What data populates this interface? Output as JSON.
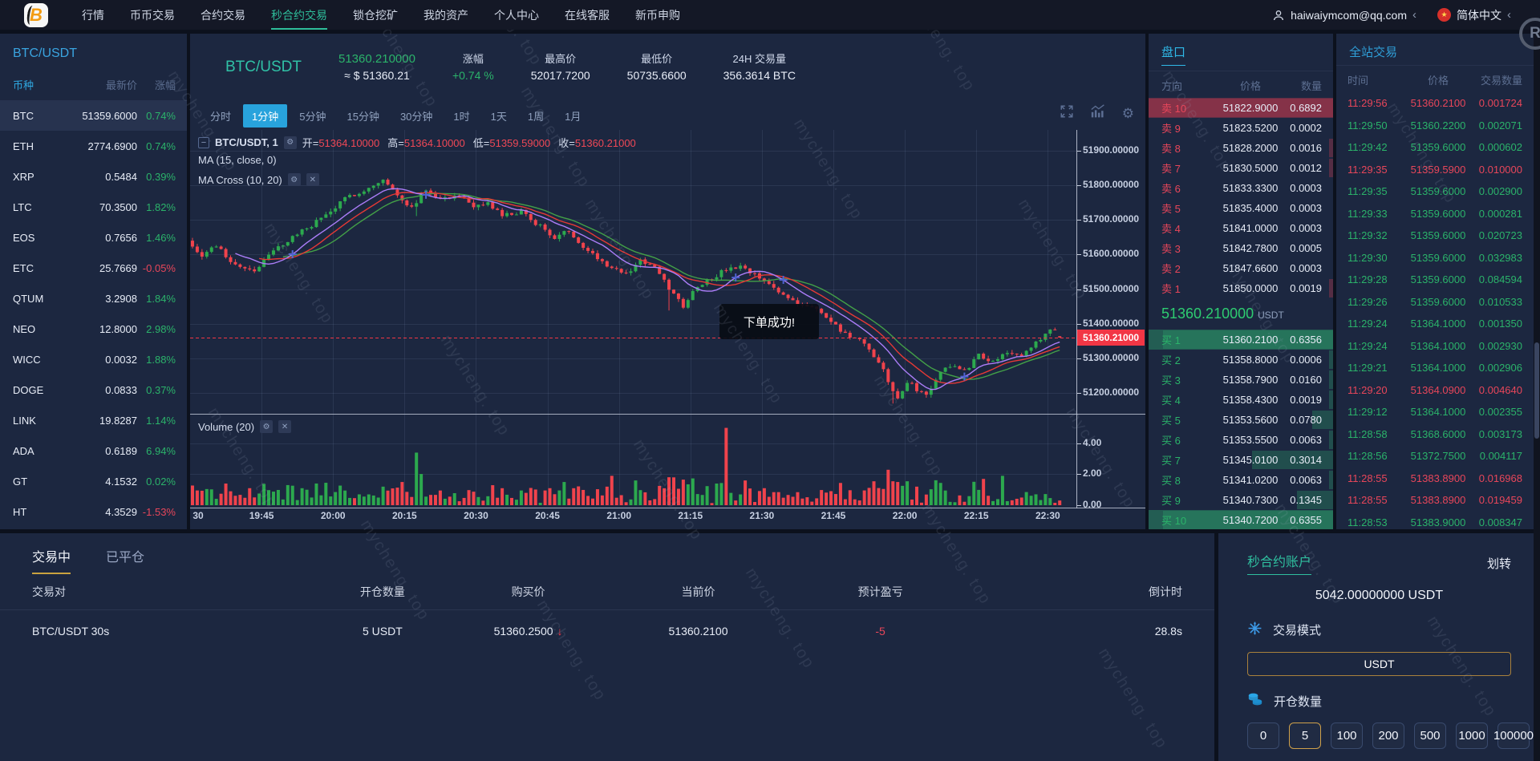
{
  "topbar": {
    "brand_letter": "B",
    "nav": [
      "行情",
      "币币交易",
      "合约交易",
      "秒合约交易",
      "锁仓挖矿",
      "我的资产",
      "个人中心",
      "在线客服",
      "新币申购"
    ],
    "active_nav_index": 3,
    "account_email": "haiwaiymcom@qq.com",
    "language": "简体中文"
  },
  "watermark_text": "mycheng. top",
  "sidebar": {
    "title": "BTC/USDT",
    "columns": [
      "币种",
      "最新价",
      "涨幅"
    ],
    "rows": [
      {
        "symbol": "BTC",
        "price": "51359.6000",
        "change": "0.74%",
        "dir": "up",
        "active": true
      },
      {
        "symbol": "ETH",
        "price": "2774.6900",
        "change": "0.74%",
        "dir": "up",
        "active": false
      },
      {
        "symbol": "XRP",
        "price": "0.5484",
        "change": "0.39%",
        "dir": "up",
        "active": false
      },
      {
        "symbol": "LTC",
        "price": "70.3500",
        "change": "1.82%",
        "dir": "up",
        "active": false
      },
      {
        "symbol": "EOS",
        "price": "0.7656",
        "change": "1.46%",
        "dir": "up",
        "active": false
      },
      {
        "symbol": "ETC",
        "price": "25.7669",
        "change": "-0.05%",
        "dir": "down",
        "active": false
      },
      {
        "symbol": "QTUM",
        "price": "3.2908",
        "change": "1.84%",
        "dir": "up",
        "active": false
      },
      {
        "symbol": "NEO",
        "price": "12.8000",
        "change": "2.98%",
        "dir": "up",
        "active": false
      },
      {
        "symbol": "WICC",
        "price": "0.0032",
        "change": "1.88%",
        "dir": "up",
        "active": false
      },
      {
        "symbol": "DOGE",
        "price": "0.0833",
        "change": "0.37%",
        "dir": "up",
        "active": false
      },
      {
        "symbol": "LINK",
        "price": "19.8287",
        "change": "1.14%",
        "dir": "up",
        "active": false
      },
      {
        "symbol": "ADA",
        "price": "0.6189",
        "change": "6.94%",
        "dir": "up",
        "active": false
      },
      {
        "symbol": "GT",
        "price": "4.1532",
        "change": "0.02%",
        "dir": "up",
        "active": false
      },
      {
        "symbol": "HT",
        "price": "4.3529",
        "change": "-1.53%",
        "dir": "down",
        "active": false
      }
    ]
  },
  "ticker": {
    "pair": "BTC/USDT",
    "last_price": "51360.210000",
    "usd_price": "≈ $ 51360.21",
    "change_label": "涨幅",
    "change_value": "+0.74 %",
    "high_label": "最高价",
    "high_value": "52017.7200",
    "low_label": "最低价",
    "low_value": "50735.6600",
    "volume_label": "24H 交易量",
    "volume_value": "356.3614 BTC"
  },
  "timeframes": {
    "items": [
      "分时",
      "1分钟",
      "5分钟",
      "15分钟",
      "30分钟",
      "1时",
      "1天",
      "1周",
      "1月"
    ],
    "active_index": 1
  },
  "chart_ui": {
    "series_label": "BTC/USDT, 1",
    "ohlc_items": [
      {
        "k": "开=",
        "v": "51364.10000"
      },
      {
        "k": "高=",
        "v": "51364.10000"
      },
      {
        "k": "低=",
        "v": "51359.59000"
      },
      {
        "k": "收=",
        "v": "51360.21000"
      }
    ],
    "ma_label": "MA (15, close, 0)",
    "ma_cross_label": "MA Cross (10, 20)",
    "volume_label": "Volume (20)",
    "toast": "下单成功!",
    "price_tag": "51360.21000"
  },
  "chart_data": {
    "type": "candlestick",
    "pair": "BTC/USDT",
    "interval": "1m",
    "slots": 186,
    "candles_shown": 183,
    "price_range": [
      51140,
      51960
    ],
    "y_ticks": [
      "51900.00000",
      "51800.00000",
      "51700.00000",
      "51600.00000",
      "51500.00000",
      "51400.00000",
      "51300.00000",
      "51200.00000"
    ],
    "y_tick_values": [
      51900,
      51800,
      51700,
      51600,
      51500,
      51400,
      51300,
      51200
    ],
    "x_ticks": [
      "30",
      "19:45",
      "20:00",
      "20:15",
      "20:30",
      "20:45",
      "21:00",
      "21:15",
      "21:30",
      "21:45",
      "22:00",
      "22:15",
      "22:30"
    ],
    "x_tick_minutes": [
      0,
      15,
      30,
      45,
      60,
      75,
      90,
      105,
      120,
      135,
      150,
      165,
      180
    ],
    "volume_ticks": [
      "4.00",
      "2.00",
      "0.00"
    ],
    "volume_tick_values": [
      4,
      2,
      0
    ],
    "volume_max": 5.6,
    "current_price": 51360.21,
    "last_candle": {
      "o": 51364.1,
      "h": 51364.1,
      "l": 51359.59,
      "c": 51360.21
    },
    "price_anchors": [
      [
        0,
        51640
      ],
      [
        3,
        51600
      ],
      [
        6,
        51625
      ],
      [
        10,
        51570
      ],
      [
        14,
        51555
      ],
      [
        18,
        51610
      ],
      [
        22,
        51650
      ],
      [
        26,
        51685
      ],
      [
        30,
        51725
      ],
      [
        34,
        51770
      ],
      [
        38,
        51792
      ],
      [
        41,
        51815
      ],
      [
        44,
        51770
      ],
      [
        47,
        51738
      ],
      [
        50,
        51790
      ],
      [
        53,
        51762
      ],
      [
        57,
        51772
      ],
      [
        60,
        51732
      ],
      [
        63,
        51748
      ],
      [
        66,
        51712
      ],
      [
        70,
        51722
      ],
      [
        74,
        51682
      ],
      [
        77,
        51648
      ],
      [
        80,
        51668
      ],
      [
        84,
        51612
      ],
      [
        88,
        51572
      ],
      [
        92,
        51542
      ],
      [
        95,
        51585
      ],
      [
        98,
        51560
      ],
      [
        101,
        51502
      ],
      [
        104,
        51452
      ],
      [
        107,
        51512
      ],
      [
        110,
        51532
      ],
      [
        113,
        51556
      ],
      [
        116,
        51562
      ],
      [
        120,
        51532
      ],
      [
        124,
        51492
      ],
      [
        128,
        51462
      ],
      [
        132,
        51442
      ],
      [
        136,
        51392
      ],
      [
        139,
        51362
      ],
      [
        142,
        51342
      ],
      [
        145,
        51292
      ],
      [
        147,
        51232
      ],
      [
        149,
        51182
      ],
      [
        151,
        51232
      ],
      [
        153,
        51212
      ],
      [
        155,
        51192
      ],
      [
        157,
        51242
      ],
      [
        160,
        51282
      ],
      [
        163,
        51262
      ],
      [
        166,
        51312
      ],
      [
        169,
        51292
      ],
      [
        172,
        51322
      ],
      [
        175,
        51302
      ],
      [
        178,
        51342
      ],
      [
        181,
        51386
      ],
      [
        183,
        51392
      ],
      [
        186,
        51362
      ]
    ],
    "wick_extends": [
      [
        47,
        25
      ],
      [
        100,
        55
      ],
      [
        147,
        35
      ]
    ],
    "volume_spikes": [
      [
        8,
        0.9
      ],
      [
        12,
        1.1
      ],
      [
        20,
        1.3
      ],
      [
        24,
        1.0
      ],
      [
        28,
        1.45
      ],
      [
        40,
        1.2
      ],
      [
        44,
        1.5
      ],
      [
        47,
        3.4
      ],
      [
        52,
        0.95
      ],
      [
        75,
        1.1
      ],
      [
        78,
        1.5
      ],
      [
        88,
        1.9
      ],
      [
        93,
        1.6
      ],
      [
        98,
        1.25
      ],
      [
        101,
        1.8
      ],
      [
        104,
        1.35
      ],
      [
        110,
        1.4
      ],
      [
        112,
        5.0
      ],
      [
        116,
        1.6
      ],
      [
        120,
        1.1
      ],
      [
        145,
        1.05
      ],
      [
        148,
        1.5
      ],
      [
        152,
        1.2
      ],
      [
        158,
        0.95
      ],
      [
        166,
        1.7
      ],
      [
        170,
        1.9
      ],
      [
        175,
        0.85
      ]
    ],
    "ma_periods": {
      "ma": 15,
      "cross_fast": 10,
      "cross_slow": 20
    },
    "colors": {
      "candle_up": "#2ca94e",
      "candle_down": "#f0434c",
      "ma15": "#e53935",
      "ma10": "#ab7df8",
      "ma20": "#43a047",
      "cross_marker": "#4f63d2",
      "current_line": "#f23645"
    }
  },
  "orderbook": {
    "title": "盘口",
    "columns": [
      "方向",
      "价格",
      "数量"
    ],
    "asks": [
      {
        "label": "卖 10",
        "price": "51822.9000",
        "amount": "0.6892",
        "highlight": true
      },
      {
        "label": "卖 9",
        "price": "51823.5200",
        "amount": "0.0002",
        "highlight": false
      },
      {
        "label": "卖 8",
        "price": "51828.2000",
        "amount": "0.0016",
        "highlight": false
      },
      {
        "label": "卖 7",
        "price": "51830.5000",
        "amount": "0.0012",
        "highlight": false
      },
      {
        "label": "卖 6",
        "price": "51833.3300",
        "amount": "0.0003",
        "highlight": false
      },
      {
        "label": "卖 5",
        "price": "51835.4000",
        "amount": "0.0003",
        "highlight": false
      },
      {
        "label": "卖 4",
        "price": "51841.0000",
        "amount": "0.0003",
        "highlight": false
      },
      {
        "label": "卖 3",
        "price": "51842.7800",
        "amount": "0.0005",
        "highlight": false
      },
      {
        "label": "卖 2",
        "price": "51847.6600",
        "amount": "0.0003",
        "highlight": false
      },
      {
        "label": "卖 1",
        "price": "51850.0000",
        "amount": "0.0019",
        "highlight": false
      }
    ],
    "current_price": "51360.210000",
    "current_unit": "USDT",
    "bids": [
      {
        "label": "买 1",
        "price": "51360.2100",
        "amount": "0.6356",
        "highlight": true
      },
      {
        "label": "买 2",
        "price": "51358.8000",
        "amount": "0.0006",
        "highlight": false
      },
      {
        "label": "买 3",
        "price": "51358.7900",
        "amount": "0.0160",
        "highlight": false
      },
      {
        "label": "买 4",
        "price": "51358.4300",
        "amount": "0.0019",
        "highlight": false
      },
      {
        "label": "买 5",
        "price": "51353.5600",
        "amount": "0.0780",
        "highlight": false
      },
      {
        "label": "买 6",
        "price": "51353.5500",
        "amount": "0.0063",
        "highlight": false
      },
      {
        "label": "买 7",
        "price": "51345.0100",
        "amount": "0.3014",
        "highlight": false
      },
      {
        "label": "买 8",
        "price": "51341.0200",
        "amount": "0.0063",
        "highlight": false
      },
      {
        "label": "买 9",
        "price": "51340.7300",
        "amount": "0.1345",
        "highlight": false
      },
      {
        "label": "买 10",
        "price": "51340.7200",
        "amount": "0.6355",
        "highlight": true
      }
    ]
  },
  "trades": {
    "title": "全站交易",
    "columns": [
      "时间",
      "价格",
      "交易数量"
    ],
    "rows": [
      {
        "time": "11:29:56",
        "price": "51360.2100",
        "amount": "0.001724",
        "dir": "down"
      },
      {
        "time": "11:29:50",
        "price": "51360.2200",
        "amount": "0.002071",
        "dir": "up"
      },
      {
        "time": "11:29:42",
        "price": "51359.6000",
        "amount": "0.000602",
        "dir": "up"
      },
      {
        "time": "11:29:35",
        "price": "51359.5900",
        "amount": "0.010000",
        "dir": "down"
      },
      {
        "time": "11:29:35",
        "price": "51359.6000",
        "amount": "0.002900",
        "dir": "up"
      },
      {
        "time": "11:29:33",
        "price": "51359.6000",
        "amount": "0.000281",
        "dir": "up"
      },
      {
        "time": "11:29:32",
        "price": "51359.6000",
        "amount": "0.020723",
        "dir": "up"
      },
      {
        "time": "11:29:30",
        "price": "51359.6000",
        "amount": "0.032983",
        "dir": "up"
      },
      {
        "time": "11:29:28",
        "price": "51359.6000",
        "amount": "0.084594",
        "dir": "up"
      },
      {
        "time": "11:29:26",
        "price": "51359.6000",
        "amount": "0.010533",
        "dir": "up"
      },
      {
        "time": "11:29:24",
        "price": "51364.1000",
        "amount": "0.001350",
        "dir": "up"
      },
      {
        "time": "11:29:24",
        "price": "51364.1000",
        "amount": "0.002930",
        "dir": "up"
      },
      {
        "time": "11:29:21",
        "price": "51364.1000",
        "amount": "0.002906",
        "dir": "up"
      },
      {
        "time": "11:29:20",
        "price": "51364.0900",
        "amount": "0.004640",
        "dir": "down"
      },
      {
        "time": "11:29:12",
        "price": "51364.1000",
        "amount": "0.002355",
        "dir": "up"
      },
      {
        "time": "11:28:58",
        "price": "51368.6000",
        "amount": "0.003173",
        "dir": "up"
      },
      {
        "time": "11:28:56",
        "price": "51372.7500",
        "amount": "0.004117",
        "dir": "up"
      },
      {
        "time": "11:28:55",
        "price": "51383.8900",
        "amount": "0.016968",
        "dir": "down"
      },
      {
        "time": "11:28:55",
        "price": "51383.8900",
        "amount": "0.019459",
        "dir": "down"
      },
      {
        "time": "11:28:53",
        "price": "51383.9000",
        "amount": "0.008347",
        "dir": "up"
      }
    ]
  },
  "positions": {
    "tabs": [
      "交易中",
      "已平仓"
    ],
    "active_tab_index": 0,
    "columns": [
      "交易对",
      "开仓数量",
      "购买价",
      "当前价",
      "预计盈亏",
      "倒计时"
    ],
    "rows": [
      {
        "pair": "BTC/USDT 30s",
        "amount": "5 USDT",
        "buy_price": "51360.2500",
        "buy_dir": "down",
        "current_price": "51360.2100",
        "pnl": "-5",
        "countdown": "28.8s"
      }
    ]
  },
  "account": {
    "title": "秒合约账户",
    "transfer_label": "划转",
    "balance": "5042.00000000 USDT",
    "mode_label": "交易模式",
    "mode_value": "USDT",
    "amount_label": "开仓数量",
    "amounts": [
      "0",
      "5",
      "100",
      "200",
      "500",
      "1000",
      "100000"
    ],
    "active_amount_index": 1
  }
}
